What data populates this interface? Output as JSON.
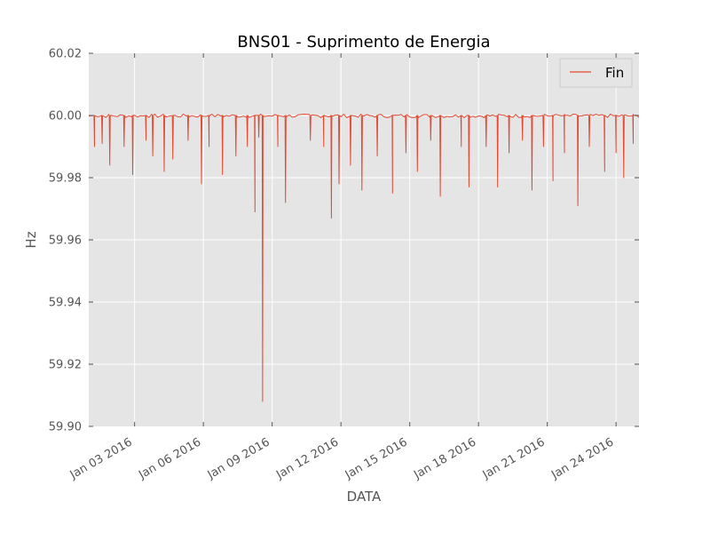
{
  "chart_data": {
    "type": "line",
    "title": "BNS01 - Suprimento de Energia",
    "xlabel": "DATA",
    "ylabel": "Hz",
    "x_start": "2016-01-01",
    "x_end": "2016-01-25",
    "ylim": [
      59.9,
      60.02
    ],
    "yticks": [
      "59.90",
      "59.92",
      "59.94",
      "59.96",
      "59.98",
      "60.00",
      "60.02"
    ],
    "ytick_values": [
      59.9,
      59.92,
      59.94,
      59.96,
      59.98,
      60.0,
      60.02
    ],
    "xticks": [
      "Jan 03 2016",
      "Jan 06 2016",
      "Jan 09 2016",
      "Jan 12 2016",
      "Jan 15 2016",
      "Jan 18 2016",
      "Jan 21 2016",
      "Jan 24 2016"
    ],
    "xtick_dates": [
      "2016-01-03",
      "2016-01-06",
      "2016-01-09",
      "2016-01-12",
      "2016-01-15",
      "2016-01-18",
      "2016-01-21",
      "2016-01-24"
    ],
    "grid": true,
    "legend_position": "top-right",
    "series": [
      {
        "name": "Fin",
        "color": "#E24A33",
        "baseline": 60.0,
        "dips": [
          [
            "2016-01-01T06:00",
            59.99
          ],
          [
            "2016-01-01T14:00",
            59.991
          ],
          [
            "2016-01-01T22:00",
            59.984
          ],
          [
            "2016-01-02T13:00",
            59.99
          ],
          [
            "2016-01-02T22:00",
            59.981
          ],
          [
            "2016-01-03T12:00",
            59.992
          ],
          [
            "2016-01-03T19:00",
            59.987
          ],
          [
            "2016-01-04T07:00",
            59.982
          ],
          [
            "2016-01-04T16:00",
            59.986
          ],
          [
            "2016-01-05T08:00",
            59.992
          ],
          [
            "2016-01-05T22:00",
            59.978
          ],
          [
            "2016-01-06T06:00",
            59.99
          ],
          [
            "2016-01-06T20:00",
            59.981
          ],
          [
            "2016-01-07T10:00",
            59.987
          ],
          [
            "2016-01-07T22:00",
            59.99
          ],
          [
            "2016-01-08T06:00",
            59.969
          ],
          [
            "2016-01-08T10:00",
            59.993
          ],
          [
            "2016-01-08T14:00",
            59.908
          ],
          [
            "2016-01-09T06:00",
            59.99
          ],
          [
            "2016-01-09T14:00",
            59.972
          ],
          [
            "2016-01-10T16:00",
            59.992
          ],
          [
            "2016-01-11T06:00",
            59.99
          ],
          [
            "2016-01-11T14:00",
            59.967
          ],
          [
            "2016-01-11T22:00",
            59.978
          ],
          [
            "2016-01-12T10:00",
            59.984
          ],
          [
            "2016-01-12T22:00",
            59.976
          ],
          [
            "2016-01-13T14:00",
            59.987
          ],
          [
            "2016-01-14T06:00",
            59.975
          ],
          [
            "2016-01-14T20:00",
            59.988
          ],
          [
            "2016-01-15T08:00",
            59.982
          ],
          [
            "2016-01-15T22:00",
            59.992
          ],
          [
            "2016-01-16T08:00",
            59.974
          ],
          [
            "2016-01-17T06:00",
            59.99
          ],
          [
            "2016-01-17T14:00",
            59.977
          ],
          [
            "2016-01-18T08:00",
            59.99
          ],
          [
            "2016-01-18T20:00",
            59.977
          ],
          [
            "2016-01-19T08:00",
            59.988
          ],
          [
            "2016-01-19T22:00",
            59.992
          ],
          [
            "2016-01-20T08:00",
            59.976
          ],
          [
            "2016-01-20T20:00",
            59.99
          ],
          [
            "2016-01-21T06:00",
            59.979
          ],
          [
            "2016-01-21T18:00",
            59.988
          ],
          [
            "2016-01-22T08:00",
            59.971
          ],
          [
            "2016-01-22T20:00",
            59.99
          ],
          [
            "2016-01-23T12:00",
            59.982
          ],
          [
            "2016-01-24T00:00",
            59.988
          ],
          [
            "2016-01-24T08:00",
            59.98
          ],
          [
            "2016-01-24T18:00",
            59.991
          ]
        ]
      }
    ]
  }
}
